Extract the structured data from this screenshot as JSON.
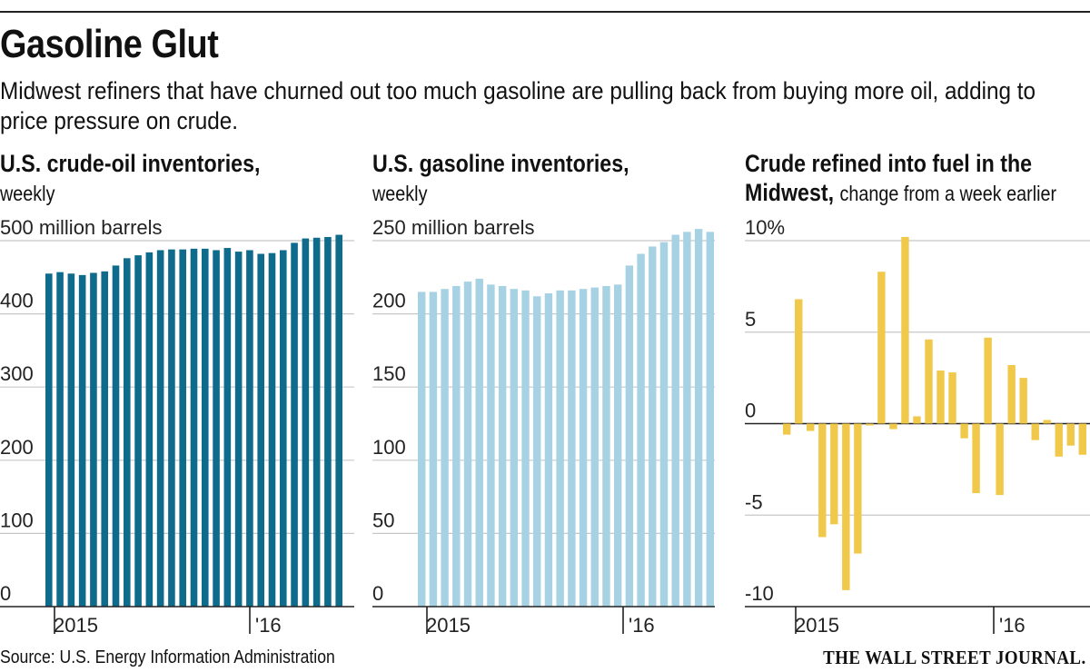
{
  "header": {
    "title": "Gasoline Glut",
    "subtitle": "Midwest refiners that have churned out too much gasoline are pulling back from buying more oil, adding to price pressure on crude."
  },
  "panels": [
    {
      "title_bold": "U.S. crude-oil inventories,",
      "title_light": "weekly"
    },
    {
      "title_bold": "U.S. gasoline inventories,",
      "title_light": "weekly"
    },
    {
      "title_bold": "Crude refined into fuel in the",
      "title_bold2": "Midwest,",
      "title_light": "change from a week earlier"
    }
  ],
  "footer": {
    "source": "Source: U.S. Energy Information Administration",
    "logo": "THE WALL STREET JOURNAL."
  },
  "colors": {
    "crude": "#0e6b8c",
    "gasoline": "#a6d2e3",
    "refined": "#f0c84a",
    "grid": "#c8c8c8",
    "axis": "#222222"
  },
  "chart_data": [
    {
      "type": "bar",
      "title": "U.S. crude-oil inventories, weekly",
      "ylabel": "500 million barrels",
      "ylim": [
        0,
        500
      ],
      "yticks": [
        0,
        100,
        200,
        300,
        400,
        500
      ],
      "ytick_labels": [
        "0",
        "100",
        "200",
        "300",
        "400",
        "500 million barrels"
      ],
      "xtick_labels": [
        "2015",
        "'16"
      ],
      "values": [
        455,
        457,
        455,
        453,
        456,
        458,
        466,
        476,
        480,
        484,
        487,
        488,
        488,
        489,
        489,
        487,
        490,
        485,
        487,
        482,
        483,
        487,
        497,
        503,
        504,
        505,
        508
      ]
    },
    {
      "type": "bar",
      "title": "U.S. gasoline inventories, weekly",
      "ylabel": "250 million barrels",
      "ylim": [
        0,
        250
      ],
      "yticks": [
        0,
        50,
        100,
        150,
        200,
        250
      ],
      "ytick_labels": [
        "0",
        "50",
        "100",
        "150",
        "200",
        "250 million barrels"
      ],
      "xtick_labels": [
        "2015",
        "'16"
      ],
      "values": [
        215,
        215,
        217,
        219,
        222,
        224,
        220,
        219,
        217,
        216,
        212,
        214,
        216,
        216,
        217,
        218,
        219,
        220,
        233,
        241,
        246,
        249,
        254,
        256,
        258,
        256
      ]
    },
    {
      "type": "bar",
      "title": "Crude refined into fuel in the Midwest, change from a week earlier",
      "ylabel": "%",
      "ylim": [
        -10,
        10
      ],
      "yticks": [
        -10,
        -5,
        0,
        5,
        10
      ],
      "ytick_labels": [
        "-10",
        "-5",
        "0",
        "5",
        "10%"
      ],
      "xtick_labels": [
        "2015",
        "'16"
      ],
      "values": [
        -0.6,
        6.8,
        -0.4,
        -6.2,
        -5.5,
        -9.1,
        -7.1,
        -0.1,
        8.3,
        -0.3,
        10.2,
        0.4,
        4.6,
        2.9,
        2.8,
        -0.8,
        -3.8,
        4.7,
        -3.9,
        3.2,
        2.5,
        -0.9,
        0.2,
        -1.8,
        -1.2,
        -1.7
      ]
    }
  ]
}
